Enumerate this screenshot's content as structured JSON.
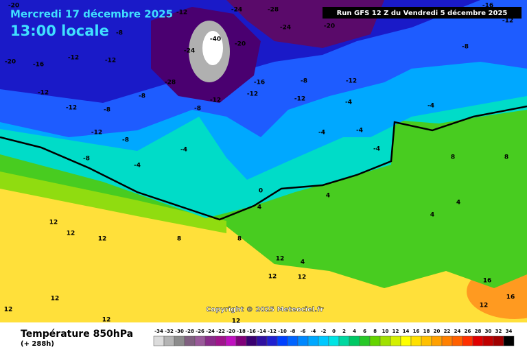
{
  "header": {
    "date": "Mercredi 17 décembre 2025",
    "time": "13:00 locale",
    "run": "Run GFS 12 Z du Vendredi 5 décembre 2025"
  },
  "copyright": "Copyright © 2025 Meteociel.fr",
  "legend": {
    "title": "Température 850hPa",
    "lead": "(+ 288h)",
    "values": [
      -34,
      -32,
      -30,
      -28,
      -26,
      -24,
      -22,
      -20,
      -18,
      -16,
      -14,
      -12,
      -10,
      -8,
      -6,
      -4,
      -2,
      0,
      2,
      4,
      6,
      8,
      10,
      12,
      14,
      16,
      18,
      20,
      22,
      24,
      26,
      28,
      30,
      32,
      34
    ],
    "colors": [
      "#dcdcdc",
      "#b4b4b4",
      "#8c8c8c",
      "#806080",
      "#9a5a9a",
      "#8a2b8a",
      "#a0148c",
      "#c010c0",
      "#80007a",
      "#3a0070",
      "#3010a0",
      "#2020d0",
      "#0040ff",
      "#0064ff",
      "#0088ff",
      "#00a8ff",
      "#00c8ff",
      "#00e4e4",
      "#00d8a0",
      "#00c864",
      "#28c828",
      "#64d400",
      "#a0e000",
      "#d4f000",
      "#ffff00",
      "#ffe000",
      "#ffc000",
      "#ffa000",
      "#ff8000",
      "#ff6000",
      "#ff3000",
      "#e00000",
      "#c00000",
      "#a00000",
      "#000000"
    ]
  },
  "map_labels": [
    -20,
    -12,
    -24,
    -28,
    -20,
    -16,
    -12,
    -20,
    -16,
    -12,
    -12,
    -8,
    -20,
    -40,
    -24,
    -28,
    -16,
    -24,
    -8,
    -12,
    -12,
    -8,
    -12,
    -8,
    -12,
    -12,
    -12,
    -8,
    -4,
    -4,
    -8,
    -12,
    -8,
    -8,
    -4,
    -4,
    -4,
    -4,
    -4,
    0,
    4,
    4,
    8,
    8,
    4,
    4,
    12,
    12,
    12,
    8,
    8,
    4,
    12,
    12,
    12,
    12,
    12,
    12,
    16,
    16,
    12,
    12
  ]
}
